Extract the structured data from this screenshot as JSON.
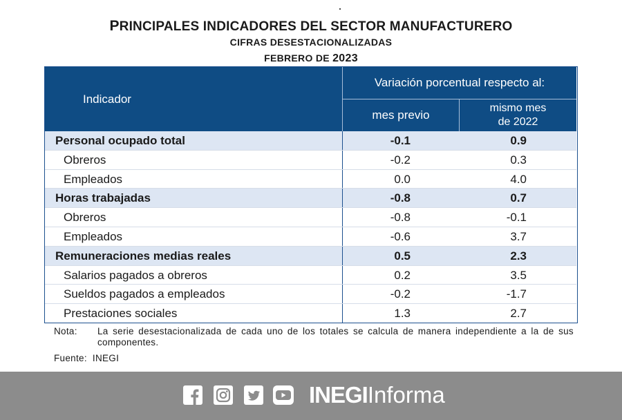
{
  "header": {
    "title_first": "P",
    "title_rest": "RINCIPALES INDICADORES DEL SECTOR MANUFACTURERO",
    "subtitle": "CIFRAS DESESTACIONALIZADAS",
    "period_prefix": "FEBRERO DE ",
    "period_year": "2023"
  },
  "table": {
    "col_indicator": "Indicador",
    "col_variation": "Variación porcentual respecto al:",
    "col_prev_month": "mes previo",
    "col_same_month_l1": "mismo mes",
    "col_same_month_l2": "de 2022",
    "rows": [
      {
        "label": "Personal ocupado total",
        "prev": "-0.1",
        "yoy": "0.9",
        "type": "total"
      },
      {
        "label": "Obreros",
        "prev": "-0.2",
        "yoy": "0.3",
        "type": "sub"
      },
      {
        "label": "Empleados",
        "prev": "0.0",
        "yoy": "4.0",
        "type": "sub"
      },
      {
        "label": "Horas trabajadas",
        "prev": "-0.8",
        "yoy": "0.7",
        "type": "total"
      },
      {
        "label": "Obreros",
        "prev": "-0.8",
        "yoy": "-0.1",
        "type": "sub"
      },
      {
        "label": "Empleados",
        "prev": "-0.6",
        "yoy": "3.7",
        "type": "sub"
      },
      {
        "label": "Remuneraciones medias reales",
        "prev": "0.5",
        "yoy": "2.3",
        "type": "total"
      },
      {
        "label": "Salarios pagados a obreros",
        "prev": "0.2",
        "yoy": "3.5",
        "type": "sub"
      },
      {
        "label": "Sueldos pagados a empleados",
        "prev": "-0.2",
        "yoy": "-1.7",
        "type": "sub"
      },
      {
        "label": "Prestaciones sociales",
        "prev": "1.3",
        "yoy": "2.7",
        "type": "sub"
      }
    ]
  },
  "notes": {
    "note_label": "Nota:",
    "note_text": "La serie desestacionalizada de cada uno de los totales se calcula de manera independiente a la de sus componentes.",
    "source_label": "Fuente:",
    "source_value": "INEGI"
  },
  "footer": {
    "brand_bold": "INEGI",
    "brand_light": "Informa",
    "icons": [
      "facebook-icon",
      "instagram-icon",
      "twitter-icon",
      "youtube-icon"
    ]
  },
  "colors": {
    "header_blue": "#0f4c84",
    "total_row_bg": "#dde6f3",
    "footer_gray": "#8c8c8c"
  }
}
